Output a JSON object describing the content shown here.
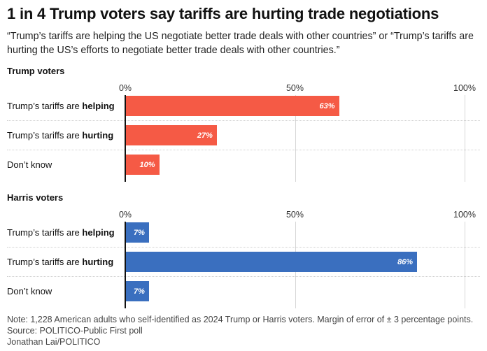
{
  "title": "1 in 4 Trump voters say tariffs are hurting trade negotiations",
  "subtitle": "“Trump’s tariffs are helping the US negotiate better trade deals with other countries” or “Trump’s tariffs are hurting the US’s efforts to negotiate better trade deals with other countries.”",
  "colors": {
    "trump": "#f55a45",
    "harris": "#3a6fbf"
  },
  "chart_data": [
    {
      "type": "bar",
      "title": "Trump voters",
      "categories": [
        {
          "prefix": "Trump’s tariffs are ",
          "bold": "helping"
        },
        {
          "prefix": "Trump’s tariffs are ",
          "bold": "hurting"
        },
        {
          "prefix": "Don’t know",
          "bold": ""
        }
      ],
      "values": [
        63,
        27,
        10
      ],
      "value_labels": [
        "63%",
        "27%",
        "10%"
      ],
      "ticks": [
        "0%",
        "50%",
        "100%"
      ],
      "xlim": [
        0,
        100
      ],
      "color": "#f55a45"
    },
    {
      "type": "bar",
      "title": "Harris voters",
      "categories": [
        {
          "prefix": "Trump’s tariffs are ",
          "bold": "helping"
        },
        {
          "prefix": "Trump’s tariffs are ",
          "bold": "hurting"
        },
        {
          "prefix": "Don’t know",
          "bold": ""
        }
      ],
      "values": [
        7,
        86,
        7
      ],
      "value_labels": [
        "7%",
        "86%",
        "7%"
      ],
      "ticks": [
        "0%",
        "50%",
        "100%"
      ],
      "xlim": [
        0,
        100
      ],
      "color": "#3a6fbf"
    }
  ],
  "footer": {
    "note": "Note: 1,228 American adults who self-identified as 2024 Trump or Harris voters. Margin of error of ± 3 percentage points.",
    "source": "Source: POLITICO-Public First poll",
    "credit": "Jonathan Lai/POLITICO"
  }
}
